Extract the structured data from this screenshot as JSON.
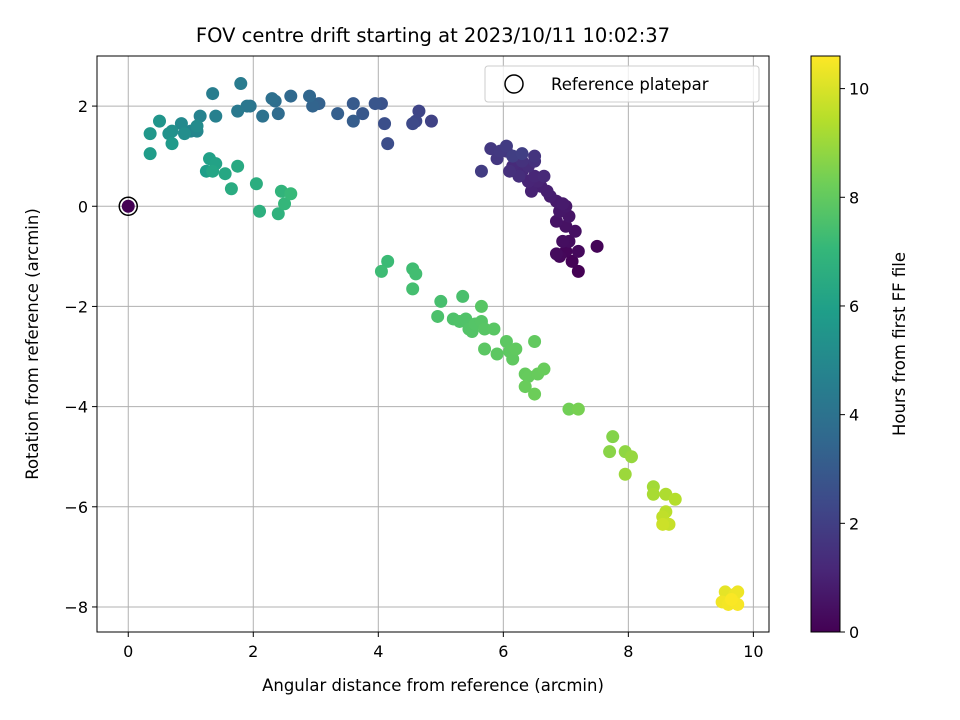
{
  "chart_data": {
    "type": "scatter",
    "title": "FOV centre drift starting at 2023/10/11 10:02:37",
    "xlabel": "Angular distance from reference (arcmin)",
    "ylabel": "Rotation from reference (arcmin)",
    "xlim": [
      -0.5,
      10.25
    ],
    "ylim": [
      -8.5,
      3.0
    ],
    "xticks": [
      0,
      2,
      4,
      6,
      8,
      10
    ],
    "yticks": [
      -8,
      -6,
      -4,
      -2,
      0,
      2
    ],
    "grid": true,
    "legend": {
      "label": "Reference platepar",
      "location": "upper right"
    },
    "reference_point": {
      "x": 0,
      "y": 0
    },
    "colorbar": {
      "label": "Hours from first FF file",
      "range": [
        0,
        10.6
      ],
      "ticks": [
        0,
        2,
        4,
        6,
        8,
        10
      ],
      "colormap": "viridis"
    },
    "colormap_stops": [
      "#440154",
      "#482878",
      "#3e4989",
      "#31688e",
      "#26828e",
      "#1f9e89",
      "#35b779",
      "#6ece58",
      "#b5de2b",
      "#fde725"
    ],
    "points": [
      [
        7.2,
        -1.3,
        0.0
      ],
      [
        7.1,
        -1.1,
        0.05
      ],
      [
        7.5,
        -0.8,
        0.1
      ],
      [
        7.0,
        -0.9,
        0.15
      ],
      [
        6.9,
        -1.0,
        0.2
      ],
      [
        7.2,
        -0.9,
        0.25
      ],
      [
        6.85,
        -0.95,
        0.3
      ],
      [
        7.05,
        -0.7,
        0.35
      ],
      [
        6.95,
        -0.7,
        0.4
      ],
      [
        7.15,
        -0.5,
        0.45
      ],
      [
        7.0,
        -0.4,
        0.5
      ],
      [
        6.85,
        -0.3,
        0.55
      ],
      [
        7.05,
        -0.2,
        0.6
      ],
      [
        6.9,
        -0.1,
        0.65
      ],
      [
        7.0,
        0.0,
        0.7
      ],
      [
        6.85,
        0.1,
        0.75
      ],
      [
        6.95,
        0.05,
        0.8
      ],
      [
        6.75,
        0.2,
        0.85
      ],
      [
        6.7,
        0.3,
        0.9
      ],
      [
        6.6,
        0.4,
        0.95
      ],
      [
        6.45,
        0.3,
        1.0
      ],
      [
        6.55,
        0.5,
        1.05
      ],
      [
        6.4,
        0.5,
        1.1
      ],
      [
        6.5,
        0.6,
        1.15
      ],
      [
        6.65,
        0.6,
        1.2
      ],
      [
        6.3,
        0.7,
        1.25
      ],
      [
        6.15,
        0.8,
        1.3
      ],
      [
        6.4,
        0.8,
        1.35
      ],
      [
        6.25,
        0.6,
        1.4
      ],
      [
        6.1,
        0.7,
        1.45
      ],
      [
        6.5,
        0.9,
        1.5
      ],
      [
        6.3,
        0.9,
        1.55
      ],
      [
        6.5,
        1.0,
        1.6
      ],
      [
        6.05,
        1.1,
        1.65
      ],
      [
        5.9,
        0.95,
        1.7
      ],
      [
        5.8,
        1.15,
        1.75
      ],
      [
        5.95,
        1.1,
        1.8
      ],
      [
        6.05,
        1.2,
        1.85
      ],
      [
        5.65,
        0.7,
        1.9
      ],
      [
        6.15,
        1.0,
        1.95
      ],
      [
        6.3,
        1.05,
        2.0
      ],
      [
        4.85,
        1.7,
        2.1
      ],
      [
        4.65,
        1.9,
        2.2
      ],
      [
        4.6,
        1.7,
        2.3
      ],
      [
        4.55,
        1.65,
        2.4
      ],
      [
        4.15,
        1.25,
        2.5
      ],
      [
        4.1,
        1.65,
        2.6
      ],
      [
        4.05,
        2.05,
        2.7
      ],
      [
        3.95,
        2.05,
        2.8
      ],
      [
        3.75,
        1.85,
        2.9
      ],
      [
        3.6,
        2.05,
        3.0
      ],
      [
        3.6,
        1.7,
        3.1
      ],
      [
        3.35,
        1.85,
        3.2
      ],
      [
        3.05,
        2.05,
        3.3
      ],
      [
        2.95,
        2.0,
        3.4
      ],
      [
        2.9,
        2.2,
        3.5
      ],
      [
        2.6,
        2.2,
        3.6
      ],
      [
        2.4,
        1.85,
        3.7
      ],
      [
        2.35,
        2.1,
        3.8
      ],
      [
        2.3,
        2.15,
        3.9
      ],
      [
        2.15,
        1.8,
        4.0
      ],
      [
        1.95,
        2.0,
        4.1
      ],
      [
        1.9,
        2.0,
        4.2
      ],
      [
        1.75,
        1.9,
        4.3
      ],
      [
        1.8,
        2.45,
        4.4
      ],
      [
        1.35,
        2.25,
        4.5
      ],
      [
        1.4,
        1.8,
        4.6
      ],
      [
        1.15,
        1.8,
        4.7
      ],
      [
        1.0,
        1.5,
        4.8
      ],
      [
        1.1,
        1.5,
        4.9
      ],
      [
        0.85,
        1.65,
        5.0
      ],
      [
        1.1,
        1.6,
        5.1
      ],
      [
        0.9,
        1.45,
        5.2
      ],
      [
        0.7,
        1.5,
        5.3
      ],
      [
        0.65,
        1.45,
        5.4
      ],
      [
        0.5,
        1.7,
        5.5
      ],
      [
        0.35,
        1.45,
        5.6
      ],
      [
        0.7,
        1.25,
        5.7
      ],
      [
        0.35,
        1.05,
        5.8
      ],
      [
        1.25,
        0.7,
        5.9
      ],
      [
        1.3,
        0.95,
        6.0
      ],
      [
        1.4,
        0.85,
        6.1
      ],
      [
        1.35,
        0.7,
        6.2
      ],
      [
        1.55,
        0.65,
        6.3
      ],
      [
        1.75,
        0.8,
        6.4
      ],
      [
        1.65,
        0.35,
        6.5
      ],
      [
        2.05,
        0.45,
        6.6
      ],
      [
        2.1,
        -0.1,
        6.7
      ],
      [
        2.4,
        -0.15,
        6.8
      ],
      [
        2.45,
        0.3,
        6.9
      ],
      [
        2.5,
        0.05,
        7.0
      ],
      [
        2.6,
        0.25,
        7.1
      ],
      [
        4.15,
        -1.1,
        7.2
      ],
      [
        4.05,
        -1.3,
        7.25
      ],
      [
        4.55,
        -1.25,
        7.3
      ],
      [
        4.6,
        -1.35,
        7.35
      ],
      [
        4.55,
        -1.65,
        7.4
      ],
      [
        5.0,
        -1.9,
        7.45
      ],
      [
        5.35,
        -1.8,
        7.5
      ],
      [
        4.95,
        -2.2,
        7.55
      ],
      [
        5.2,
        -2.25,
        7.6
      ],
      [
        5.3,
        -2.3,
        7.62
      ],
      [
        5.4,
        -2.25,
        7.65
      ],
      [
        5.45,
        -2.45,
        7.68
      ],
      [
        5.5,
        -2.5,
        7.7
      ],
      [
        5.55,
        -2.35,
        7.72
      ],
      [
        5.65,
        -2.3,
        7.75
      ],
      [
        5.7,
        -2.45,
        7.78
      ],
      [
        5.65,
        -2.0,
        7.8
      ],
      [
        5.85,
        -2.45,
        7.82
      ],
      [
        5.7,
        -2.85,
        7.85
      ],
      [
        5.9,
        -2.95,
        7.88
      ],
      [
        6.05,
        -2.7,
        7.9
      ],
      [
        6.1,
        -2.9,
        7.92
      ],
      [
        6.15,
        -3.05,
        7.95
      ],
      [
        6.2,
        -2.85,
        7.98
      ],
      [
        6.5,
        -2.7,
        8.0
      ],
      [
        6.35,
        -3.35,
        8.05
      ],
      [
        6.4,
        -3.4,
        8.08
      ],
      [
        6.55,
        -3.35,
        8.1
      ],
      [
        6.65,
        -3.25,
        8.12
      ],
      [
        6.35,
        -3.6,
        8.15
      ],
      [
        6.5,
        -3.75,
        8.2
      ],
      [
        7.05,
        -4.05,
        8.3
      ],
      [
        7.2,
        -4.05,
        8.4
      ],
      [
        7.75,
        -4.6,
        8.6
      ],
      [
        7.7,
        -4.9,
        8.7
      ],
      [
        7.95,
        -4.9,
        8.8
      ],
      [
        8.05,
        -5.0,
        8.9
      ],
      [
        7.95,
        -5.35,
        9.0
      ],
      [
        8.4,
        -5.6,
        9.1
      ],
      [
        8.4,
        -5.75,
        9.2
      ],
      [
        8.6,
        -5.75,
        9.3
      ],
      [
        8.75,
        -5.85,
        9.4
      ],
      [
        8.6,
        -6.1,
        9.5
      ],
      [
        8.55,
        -6.2,
        9.6
      ],
      [
        8.65,
        -6.35,
        9.7
      ],
      [
        8.55,
        -6.35,
        9.8
      ],
      [
        9.55,
        -7.7,
        10.2
      ],
      [
        9.7,
        -7.75,
        10.3
      ],
      [
        9.75,
        -7.7,
        10.35
      ],
      [
        9.5,
        -7.9,
        10.4
      ],
      [
        9.6,
        -7.95,
        10.45
      ],
      [
        9.75,
        -7.95,
        10.5
      ],
      [
        9.65,
        -7.85,
        10.55
      ]
    ]
  }
}
